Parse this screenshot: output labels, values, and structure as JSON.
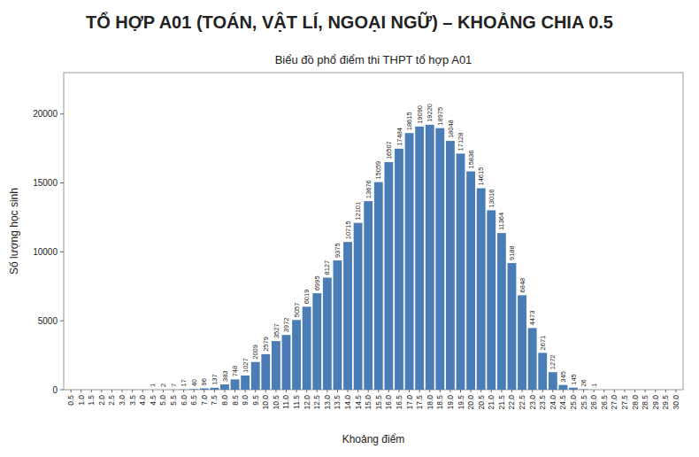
{
  "chart_data": {
    "type": "bar",
    "title": "TỔ HỢP A01 (TOÁN, VẬT LÍ, NGOẠI NGỮ) – KHOẢNG CHIA 0.5",
    "subtitle": "Biểu đồ phổ điểm thi THPT tổ hợp A01",
    "xlabel": "Khoảng điểm",
    "ylabel": "Số lượng học sinh",
    "color": "#4a7db5",
    "categories": [
      "0.5",
      "1.0",
      "1.5",
      "2.0",
      "2.5",
      "3.0",
      "3.5",
      "4.0",
      "4.5",
      "5.0",
      "5.5",
      "6.0",
      "6.5",
      "7.0",
      "7.5",
      "8.0",
      "8.5",
      "9.0",
      "9.5",
      "10.0",
      "10.5",
      "11.0",
      "11.5",
      "12.0",
      "12.5",
      "13.0",
      "13.5",
      "14.0",
      "14.5",
      "15.0",
      "15.5",
      "16.0",
      "16.5",
      "17.0",
      "17.5",
      "18.0",
      "18.5",
      "19.0",
      "19.5",
      "20.0",
      "20.5",
      "21.0",
      "21.5",
      "22.0",
      "22.5",
      "23.0",
      "23.5",
      "24.0",
      "24.5",
      "25.0",
      "25.5",
      "26.0",
      "26.5",
      "27.0",
      "27.5",
      "28.0",
      "28.5",
      "29.0",
      "29.5",
      "30.0"
    ],
    "values": [
      0,
      0,
      0,
      0,
      0,
      0,
      0,
      0,
      1,
      2,
      7,
      17,
      40,
      96,
      137,
      383,
      748,
      1027,
      2009,
      2579,
      3527,
      3972,
      5057,
      6019,
      6995,
      8127,
      9375,
      10715,
      12101,
      13676,
      15059,
      16507,
      17484,
      18615,
      19090,
      19220,
      18975,
      18048,
      17128,
      15836,
      14615,
      13016,
      11364,
      9188,
      6848,
      4473,
      2671,
      1272,
      345,
      145,
      26,
      1,
      0,
      0,
      0,
      0,
      0,
      0,
      0,
      0
    ],
    "data_labels": true,
    "value_labels": [
      null,
      null,
      null,
      null,
      null,
      null,
      null,
      null,
      "1",
      "2",
      "7",
      "17",
      "40",
      "96",
      "137",
      "383",
      "748",
      "1027",
      "2009",
      "2579",
      "3527",
      "3972",
      "5057",
      "6019",
      "6995",
      "8127",
      "9375",
      "10715",
      "12101",
      "13676",
      "15059",
      "16507",
      "17484",
      "18615",
      "19090",
      "19220",
      "18975",
      "18048",
      "17128",
      "15836",
      "14615",
      "13016",
      "11364",
      "9188",
      "6848",
      "4473",
      "2671",
      "1272",
      "345",
      "145",
      "26",
      "1",
      null,
      null,
      null,
      null,
      null,
      null,
      null,
      null
    ],
    "ylim": [
      0,
      23000
    ],
    "yticks": [
      0,
      5000,
      10000,
      15000,
      20000
    ],
    "grid": false
  }
}
